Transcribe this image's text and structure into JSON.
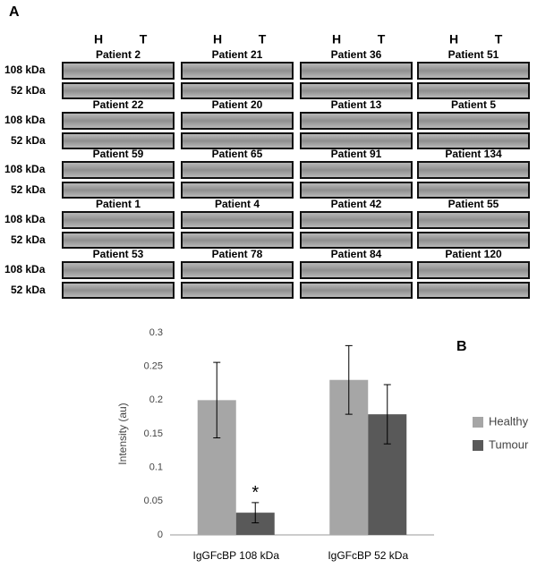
{
  "blots": {
    "label": "A",
    "lane_labels": [
      "H",
      "T"
    ],
    "band_labels": [
      "108 kDa",
      "52 kDa"
    ],
    "patients": [
      [
        "Patient 2",
        "Patient 21",
        "Patient 36",
        "Patient 51"
      ],
      [
        "Patient 22",
        "Patient 20",
        "Patient 13",
        "Patient 5"
      ],
      [
        "Patient 59",
        "Patient 65",
        "Patient 91",
        "Patient 134"
      ],
      [
        "Patient 1",
        "Patient 4",
        "Patient 42",
        "Patient 55"
      ],
      [
        "Patient 53",
        "Patient 78",
        "Patient 84",
        "Patient 120"
      ]
    ]
  },
  "chart_data": {
    "type": "bar",
    "label": "B",
    "ylabel": "Intensity (au)",
    "categories": [
      "IgGFcBP 108 kDa",
      "IgGFcBP 52 kDa"
    ],
    "series": [
      {
        "name": "Healthy",
        "color": "#a6a6a6",
        "values": [
          0.2,
          0.23
        ],
        "errors": [
          0.056,
          0.051
        ]
      },
      {
        "name": "Tumour",
        "color": "#595959",
        "values": [
          0.033,
          0.179
        ],
        "errors": [
          0.015,
          0.044
        ]
      }
    ],
    "annotation": "*",
    "ylim": [
      0,
      0.3
    ],
    "yticks": [
      0,
      0.05,
      0.1,
      0.15,
      0.2,
      0.25,
      0.3
    ],
    "grid": false,
    "legend": "right"
  }
}
